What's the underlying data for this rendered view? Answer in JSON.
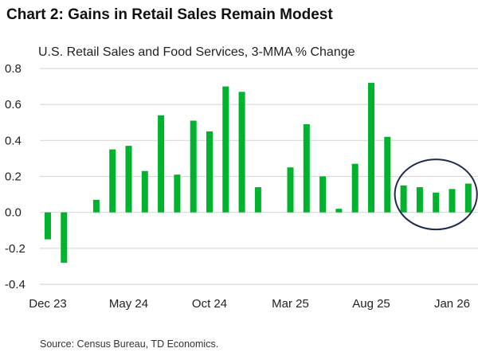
{
  "title": "Chart 2: Gains in Retail Sales Remain Modest",
  "source": "Source: Census Bureau,  TD Economics.",
  "chart_data": {
    "type": "bar",
    "title": "Chart 2: Gains in Retail Sales Remain Modest",
    "subtitle": "U.S. Retail Sales and Food Services, 3-MMA % Change",
    "categories": [
      "Dec 23",
      "Jan 24",
      "Feb 24",
      "Mar 24",
      "Apr 24",
      "May 24",
      "Jun 24",
      "Jul 24",
      "Aug 24",
      "Sep 24",
      "Oct 24",
      "Nov 24",
      "Dec 24",
      "Jan 25",
      "Feb 25",
      "Mar 25",
      "Apr 25",
      "May 25",
      "Jun 25",
      "Jul 25",
      "Aug 25",
      "Sep 25",
      "Oct 25",
      "Nov 25",
      "Dec 25",
      "Jan 26",
      "Feb 26"
    ],
    "values": [
      -0.15,
      -0.28,
      0.0,
      0.07,
      0.35,
      0.37,
      0.23,
      0.54,
      0.21,
      0.51,
      0.45,
      0.7,
      0.67,
      0.14,
      0.0,
      0.25,
      0.49,
      0.2,
      0.02,
      0.27,
      0.72,
      0.42,
      0.15,
      0.14,
      0.11,
      0.13,
      0.16
    ],
    "xtick_labels": [
      "Dec 23",
      "May 24",
      "Oct 24",
      "Mar 25",
      "Aug 25",
      "Jan 26"
    ],
    "ytick_labels": [
      "0.8",
      "0.6",
      "0.4",
      "0.2",
      "0.0",
      "-0.2",
      "-0.4"
    ],
    "ylim": [
      -0.4,
      0.8
    ],
    "grid": true,
    "bar_color": "#00b32c",
    "annotation": {
      "type": "ellipse",
      "encloses": [
        "Oct 25",
        "Nov 25",
        "Dec 25",
        "Jan 26",
        "Feb 26"
      ],
      "color": "#1f2d4d"
    }
  }
}
